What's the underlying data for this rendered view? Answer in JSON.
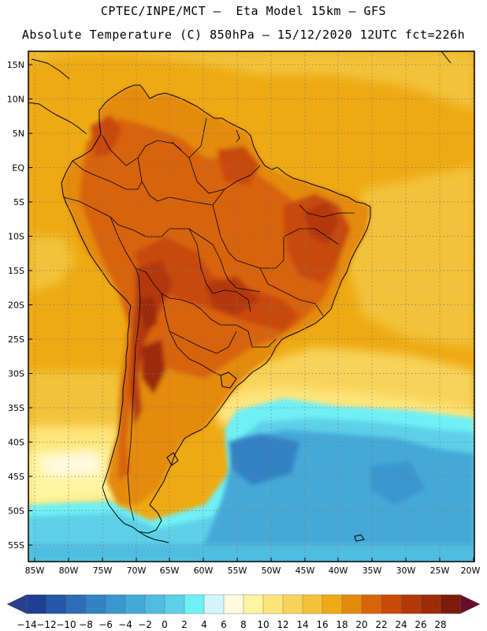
{
  "title": {
    "line1": "CPTEC/INPE/MCT –  Eta Model 15km – GFS",
    "line2": "Absolute Temperature (C) 850hPa – 15/12/2020 12UTC fct=226h"
  },
  "map": {
    "region": "South America",
    "lat_labels": [
      "15N",
      "10N",
      "5N",
      "EQ",
      "5S",
      "10S",
      "15S",
      "20S",
      "25S",
      "30S",
      "35S",
      "40S",
      "45S",
      "50S",
      "55S"
    ],
    "lon_labels": [
      "85W",
      "80W",
      "75W",
      "70W",
      "65W",
      "60W",
      "55W",
      "50W",
      "45W",
      "40W",
      "35W",
      "30W",
      "25W",
      "20W"
    ],
    "lat_range": [
      16,
      -58
    ],
    "lon_range": [
      -86,
      -19.5
    ]
  },
  "colorbar": {
    "ticks": [
      "-14",
      "-12",
      "-10",
      "-8",
      "-6",
      "-4",
      "-2",
      "0",
      "2",
      "4",
      "6",
      "8",
      "10",
      "12",
      "14",
      "16",
      "18",
      "20",
      "22",
      "24",
      "26",
      "28"
    ],
    "colors": [
      "#1f3f94",
      "#2457a8",
      "#2b6db8",
      "#3282c4",
      "#3a96cf",
      "#44a9d8",
      "#50bde0",
      "#5dd0e8",
      "#6ff0f4",
      "#d2f6fc",
      "#fff9e0",
      "#fff4a0",
      "#fde57c",
      "#f8d35a",
      "#f2c23a",
      "#eeaa14",
      "#e48a0a",
      "#d8640a",
      "#c84a08",
      "#b43808",
      "#9c2c08",
      "#7c1c0c"
    ],
    "left_arrow_color": "#283f90",
    "right_arrow_color": "#6a0c2c"
  }
}
